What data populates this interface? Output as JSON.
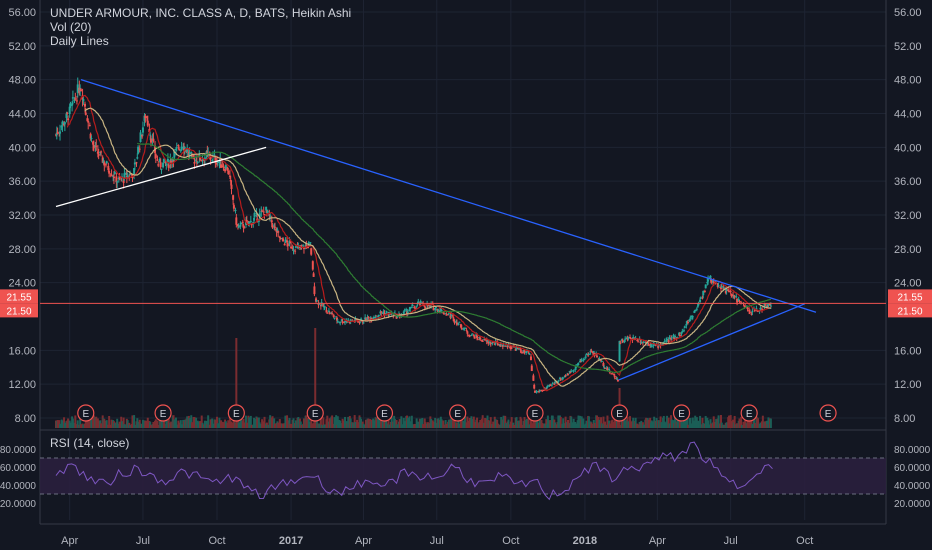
{
  "legend": {
    "title": "UNDER ARMOUR, INC. CLASS A, D, BATS, Heikin Ashi",
    "volume": "Vol (20)",
    "lines": "Daily Lines"
  },
  "rsi": {
    "label": "RSI (14, close)",
    "ticks": [
      "80.0000",
      "60.0000",
      "40.0000",
      "20.0000"
    ],
    "band": [
      30,
      70
    ]
  },
  "colors": {
    "background": "#131722",
    "up": "#26a69a",
    "down": "#ef5350",
    "trend_blue": "#2962ff",
    "trend_white": "#ffffff",
    "ma_green": "#2e7d32",
    "ma_tan": "#c8b482",
    "ma_red": "#b71c1c",
    "rsi_line": "#7e57c2",
    "price_line": "#ef5350"
  },
  "price_axis": {
    "ticks": [
      "56.00",
      "52.00",
      "48.00",
      "44.00",
      "40.00",
      "36.00",
      "32.00",
      "28.00",
      "24.00",
      "16.00",
      "12.00",
      "8.00"
    ],
    "current_price": "21.55",
    "current_price_2": "21.50"
  },
  "time_axis": {
    "labels": [
      "Apr",
      "Jul",
      "Oct",
      "2017",
      "Apr",
      "Jul",
      "Oct",
      "2018",
      "Apr",
      "Jul",
      "Oct"
    ]
  },
  "earnings_markers": [
    "E",
    "E",
    "E",
    "E",
    "E",
    "E",
    "E",
    "E",
    "E",
    "E",
    "E"
  ],
  "chart_data": {
    "type": "line",
    "title": "UNDER ARMOUR, INC. CLASS A, D, BATS, Heikin Ashi",
    "xlabel": "",
    "ylabel": "",
    "ylim": [
      8,
      56
    ],
    "grid": true,
    "x": [
      "2016-03-15",
      "2016-04-01",
      "2016-04-15",
      "2016-05-01",
      "2016-06-01",
      "2016-06-20",
      "2016-07-05",
      "2016-07-20",
      "2016-08-01",
      "2016-08-20",
      "2016-09-01",
      "2016-09-20",
      "2016-10-01",
      "2016-10-15",
      "2016-10-27",
      "2016-11-10",
      "2016-12-01",
      "2016-12-20",
      "2017-01-10",
      "2017-01-25",
      "2017-02-01",
      "2017-03-01",
      "2017-04-01",
      "2017-04-25",
      "2017-05-15",
      "2017-06-10",
      "2017-07-01",
      "2017-07-20",
      "2017-08-10",
      "2017-09-01",
      "2017-10-01",
      "2017-10-25",
      "2017-10-31",
      "2017-11-15",
      "2017-12-15",
      "2018-01-10",
      "2018-02-01",
      "2018-02-12",
      "2018-02-13",
      "2018-03-01",
      "2018-04-01",
      "2018-05-01",
      "2018-05-20",
      "2018-06-05",
      "2018-06-20",
      "2018-07-10",
      "2018-07-25",
      "2018-08-10",
      "2018-08-20"
    ],
    "series": [
      {
        "values": [
          41.5,
          44,
          47.5,
          40,
          36,
          37,
          44,
          38,
          38,
          40.5,
          38.5,
          39,
          38.5,
          37.5,
          30.5,
          31,
          32.5,
          29,
          28,
          28.5,
          22,
          19.5,
          19.5,
          20.5,
          20,
          21.5,
          21,
          20,
          18,
          17,
          16.5,
          15.5,
          11,
          11.5,
          13.5,
          16,
          13.5,
          12.5,
          17,
          17.5,
          16.5,
          18,
          21,
          24.5,
          23.5,
          22,
          20.5,
          21,
          21.5
        ]
      }
    ],
    "trendlines": [
      {
        "color": "blue",
        "from": [
          "2016-04-15",
          48
        ],
        "to": [
          "2018-10-15",
          20.5
        ]
      },
      {
        "color": "white",
        "from": [
          "2016-03-15",
          33
        ],
        "to": [
          "2016-12-01",
          40
        ]
      },
      {
        "color": "blue",
        "from": [
          "2018-02-12",
          12.5
        ],
        "to": [
          "2018-10-01",
          21.5
        ]
      }
    ],
    "rsi_values": [
      55,
      62,
      48,
      40,
      52,
      58,
      50,
      45,
      55,
      48,
      42,
      50,
      35,
      28,
      40,
      45,
      52,
      38,
      30,
      45,
      35,
      42,
      55,
      50,
      48,
      62,
      45,
      40,
      50,
      38,
      45,
      28,
      35,
      55,
      60,
      48,
      58,
      62,
      70,
      72,
      85,
      65,
      45,
      38,
      58,
      60
    ]
  }
}
